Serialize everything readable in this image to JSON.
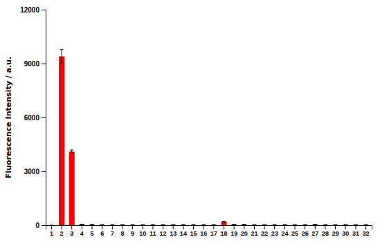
{
  "chart_data": {
    "type": "bar",
    "y_label": "Fluorescence Intensity / a.u.",
    "categories": [
      "1",
      "2",
      "3",
      "4",
      "5",
      "6",
      "7",
      "8",
      "9",
      "10",
      "11",
      "12",
      "13",
      "14",
      "15",
      "16",
      "17",
      "18",
      "19",
      "20",
      "21",
      "22",
      "23",
      "24",
      "25",
      "26",
      "27",
      "28",
      "29",
      "30",
      "31",
      "32"
    ],
    "values": [
      0,
      9400,
      4100,
      60,
      40,
      30,
      30,
      30,
      30,
      30,
      30,
      30,
      30,
      30,
      30,
      30,
      30,
      200,
      50,
      50,
      30,
      30,
      30,
      30,
      30,
      30,
      50,
      30,
      30,
      30,
      30,
      30
    ],
    "errors": [
      0,
      380,
      90,
      0,
      0,
      0,
      0,
      0,
      0,
      0,
      0,
      0,
      0,
      0,
      0,
      0,
      0,
      0,
      0,
      0,
      0,
      0,
      0,
      0,
      0,
      0,
      0,
      0,
      0,
      0,
      0,
      0
    ],
    "color": "#ff0000",
    "ylim": [
      0,
      12000
    ],
    "yticks": [
      0,
      3000,
      6000,
      9000,
      12000
    ],
    "grid": false
  }
}
